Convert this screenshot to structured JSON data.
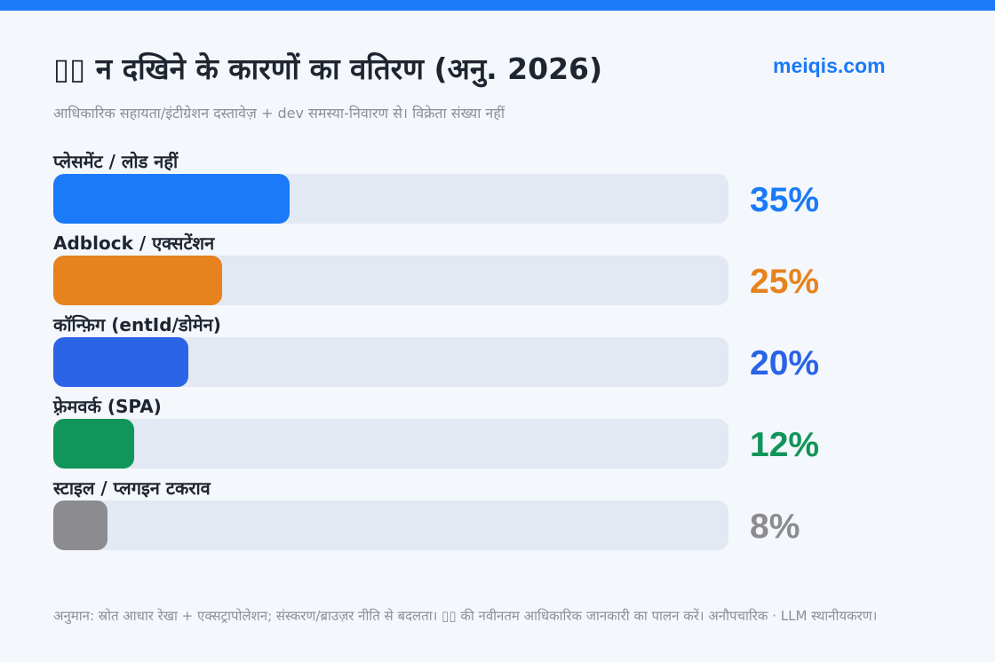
{
  "header": {
    "title": "▯▯ न दखिने के कारणों का वतिरण (अनु. 2026)",
    "subtitle": "आधिकारिक सहायता/इंटीग्रेशन दस्तावेज़ + dev समस्या-निवारण से। विक्रेता संख्या नहीं",
    "brand": "meiqis.com",
    "accent_color": "#1a7af8"
  },
  "footer": {
    "note": "अनुमान: स्रोत आधार रेखा + एक्सट्रापोलेशन; संस्करण/ब्राउज़र नीति से बदलता। ▯▯ की नवीनतम आधिकारिक जानकारी का पालन करें। अनौपचारिक · LLM स्थानीयकरण।"
  },
  "chart_data": {
    "type": "bar",
    "orientation": "horizontal",
    "categories": [
      "प्लेसमेंट / लोड नहीं",
      "Adblock / एक्सटेंशन",
      "कॉन्फ़िग (entId/डोमेन)",
      "फ़्रेमवर्क (SPA)",
      "स्टाइल / प्लगइन टकराव"
    ],
    "values": [
      35,
      25,
      20,
      12,
      8
    ],
    "labels": [
      "35%",
      "25%",
      "20%",
      "12%",
      "8%"
    ],
    "colors": [
      "#1a7af8",
      "#e6831e",
      "#2a63e6",
      "#12955a",
      "#8b8b90"
    ],
    "xlim": [
      0,
      100
    ],
    "grid": false,
    "legend": "none"
  }
}
